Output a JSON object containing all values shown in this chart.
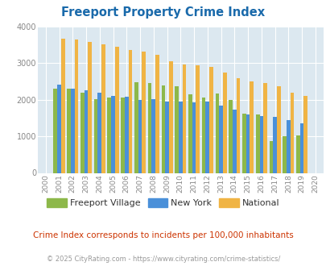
{
  "title": "Freeport Property Crime Index",
  "years": [
    2000,
    2001,
    2002,
    2003,
    2004,
    2005,
    2006,
    2007,
    2008,
    2009,
    2010,
    2011,
    2012,
    2013,
    2014,
    2015,
    2016,
    2017,
    2018,
    2019,
    2020
  ],
  "freeport": [
    null,
    2300,
    2300,
    2200,
    2010,
    2050,
    2060,
    2490,
    2460,
    2390,
    2380,
    2140,
    2050,
    2170,
    2000,
    1620,
    1600,
    870,
    1000,
    1020,
    null
  ],
  "new_york": [
    null,
    2420,
    2310,
    2250,
    2200,
    2100,
    2080,
    2000,
    2010,
    1950,
    1950,
    1930,
    1960,
    1840,
    1730,
    1600,
    1560,
    1530,
    1450,
    1360,
    null
  ],
  "national": [
    null,
    3660,
    3640,
    3590,
    3510,
    3440,
    3370,
    3310,
    3230,
    3050,
    2960,
    2940,
    2890,
    2750,
    2600,
    2510,
    2460,
    2380,
    2200,
    2110,
    null
  ],
  "freeport_color": "#8db84a",
  "new_york_color": "#4a90d9",
  "national_color": "#f0b444",
  "bg_color": "#dce8f0",
  "grid_color": "#ffffff",
  "ylim": [
    0,
    4000
  ],
  "yticks": [
    0,
    1000,
    2000,
    3000,
    4000
  ],
  "subtitle": "Crime Index corresponds to incidents per 100,000 inhabitants",
  "footer": "© 2025 CityRating.com - https://www.cityrating.com/crime-statistics/",
  "legend_labels": [
    "Freeport Village",
    "New York",
    "National"
  ],
  "title_color": "#1a6aab",
  "subtitle_color": "#cc3300",
  "footer_color": "#999999"
}
